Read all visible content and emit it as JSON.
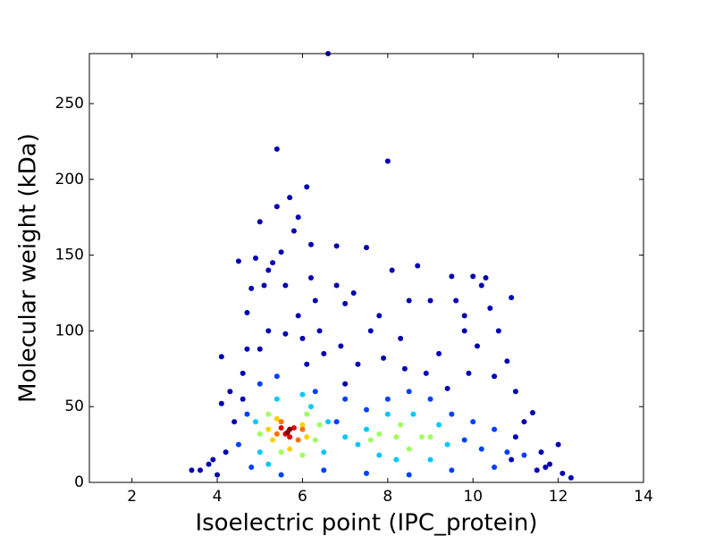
{
  "chart_data": {
    "type": "scatter",
    "x_label": "Isoelectric point (IPC_protein)",
    "y_label": "Molecular weight (kDa)",
    "xlim": [
      1,
      14
    ],
    "xticks": [
      2,
      4,
      6,
      8,
      10,
      12,
      14
    ],
    "ylim": [
      0,
      283
    ],
    "yticks": [
      0,
      50,
      100,
      150,
      200,
      250
    ],
    "series": [
      {
        "color": "#0000b4",
        "x": [
          3.4,
          3.6,
          3.8,
          4.0,
          4.1,
          4.1,
          4.3,
          4.5,
          4.6,
          4.7,
          4.8,
          4.9,
          5.0,
          5.1,
          5.2,
          5.3,
          5.4,
          5.4,
          5.5,
          5.6,
          5.7,
          5.8,
          5.9,
          5.9,
          6.0,
          6.1,
          6.2,
          6.3,
          6.4,
          6.6,
          6.8,
          6.8,
          7.0,
          7.2,
          7.5,
          7.6,
          7.8,
          8.0,
          8.1,
          8.3,
          8.5,
          8.7,
          9.0,
          9.2,
          9.5,
          9.6,
          9.8,
          10.0,
          10.2,
          10.3,
          10.4,
          10.6,
          10.8,
          10.9,
          11.0,
          11.2,
          11.4,
          11.6,
          11.8,
          12.0,
          12.3,
          12.1,
          11.5,
          10.5,
          9.9,
          9.4,
          8.9,
          7.9,
          7.3,
          6.9,
          6.5,
          5.2,
          5.0,
          4.7,
          4.6,
          4.4,
          4.2,
          3.9,
          11.0,
          11.7,
          10.9,
          6.2,
          5.6,
          6.1,
          7.0,
          9.8,
          10.1,
          8.4
        ],
        "y": [
          8,
          8,
          12,
          5,
          83,
          52,
          60,
          146,
          72,
          112,
          128,
          148,
          172,
          130,
          140,
          145,
          220,
          182,
          152,
          130,
          188,
          166,
          175,
          110,
          95,
          195,
          157,
          120,
          100,
          283,
          156,
          130,
          118,
          125,
          155,
          100,
          110,
          212,
          140,
          95,
          120,
          143,
          120,
          85,
          136,
          120,
          100,
          136,
          130,
          135,
          115,
          100,
          80,
          122,
          60,
          40,
          46,
          20,
          12,
          25,
          3,
          6,
          8,
          70,
          72,
          62,
          72,
          82,
          78,
          90,
          85,
          100,
          88,
          88,
          55,
          40,
          20,
          15,
          30,
          10,
          15,
          135,
          98,
          78,
          65,
          110,
          90,
          75
        ]
      },
      {
        "color": "#0040ff",
        "x": [
          4.5,
          4.7,
          5.0,
          5.4,
          6.3,
          7.0,
          7.5,
          8.0,
          8.5,
          9.0,
          9.5,
          10.0,
          10.5,
          10.8,
          11.2,
          4.8,
          5.5,
          6.5,
          7.5,
          8.5,
          9.5,
          10.5,
          9.8,
          10.2,
          6.8
        ],
        "y": [
          25,
          45,
          65,
          70,
          60,
          55,
          48,
          55,
          60,
          55,
          45,
          40,
          35,
          20,
          18,
          10,
          5,
          8,
          6,
          5,
          8,
          10,
          28,
          22,
          40
        ]
      },
      {
        "color": "#00c8ff",
        "x": [
          4.9,
          5.0,
          5.4,
          6.2,
          6.6,
          7.0,
          7.3,
          7.5,
          8.0,
          8.6,
          9.2,
          9.4,
          8.2,
          7.8,
          6.5,
          5.2,
          9.0,
          6.0
        ],
        "y": [
          40,
          20,
          55,
          50,
          40,
          30,
          25,
          35,
          45,
          45,
          38,
          25,
          15,
          18,
          20,
          12,
          15,
          58
        ]
      },
      {
        "color": "#a0ff60",
        "x": [
          5.0,
          5.2,
          6.1,
          6.3,
          6.4,
          7.8,
          8.3,
          8.8,
          8.5,
          5.5,
          6.0,
          7.6,
          9.0,
          8.2
        ],
        "y": [
          32,
          45,
          45,
          28,
          38,
          32,
          38,
          30,
          22,
          20,
          18,
          28,
          30,
          30
        ]
      },
      {
        "color": "#ffd000",
        "x": [
          5.2,
          5.4,
          6.0,
          5.7,
          5.3,
          6.1
        ],
        "y": [
          35,
          42,
          38,
          22,
          28,
          30
        ]
      },
      {
        "color": "#ff7000",
        "x": [
          5.5,
          5.9,
          5.4,
          6.0
        ],
        "y": [
          40,
          28,
          32,
          35
        ]
      },
      {
        "color": "#e00000",
        "x": [
          5.6,
          5.8,
          5.7,
          5.5
        ],
        "y": [
          32,
          36,
          30,
          36
        ]
      },
      {
        "color": "#800000",
        "x": [
          5.7,
          5.65
        ],
        "y": [
          35,
          33
        ]
      }
    ]
  }
}
